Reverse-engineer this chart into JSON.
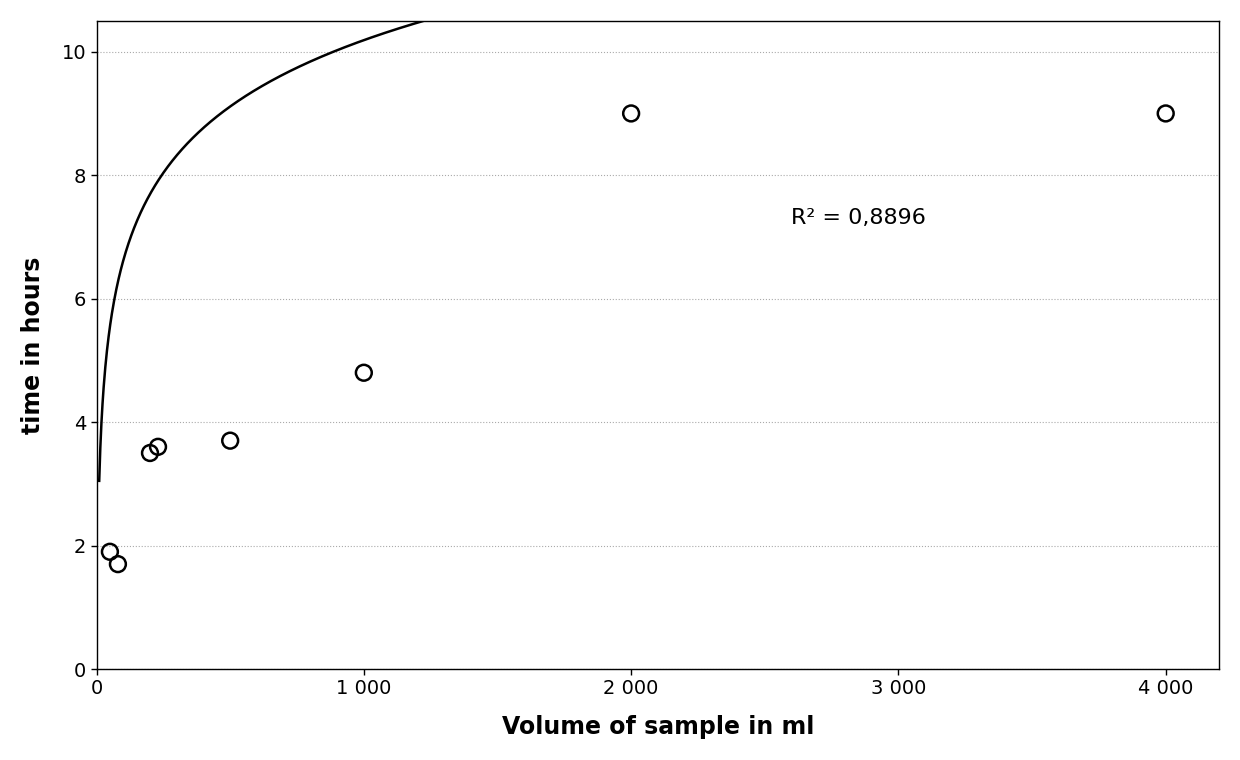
{
  "x_data": [
    50,
    80,
    200,
    230,
    500,
    1000,
    2000,
    4000
  ],
  "y_data": [
    1.9,
    1.7,
    3.5,
    3.6,
    3.7,
    4.8,
    9.0,
    9.0
  ],
  "xlim": [
    0,
    4200
  ],
  "ylim": [
    0,
    10.5
  ],
  "xlabel": "Volume of sample in ml",
  "ylabel": "time in hours",
  "r_squared_text": "R² = 0,8896",
  "r_squared_x": 2600,
  "r_squared_y": 7.3,
  "xticks": [
    0,
    1000,
    2000,
    3000,
    4000
  ],
  "yticks": [
    0,
    2,
    4,
    6,
    8,
    10
  ],
  "grid_color": "#aaaaaa",
  "curve_color": "#000000",
  "scatter_color": "#000000",
  "background_color": "#ffffff",
  "fit_a": -0.52,
  "fit_b": 1.55
}
